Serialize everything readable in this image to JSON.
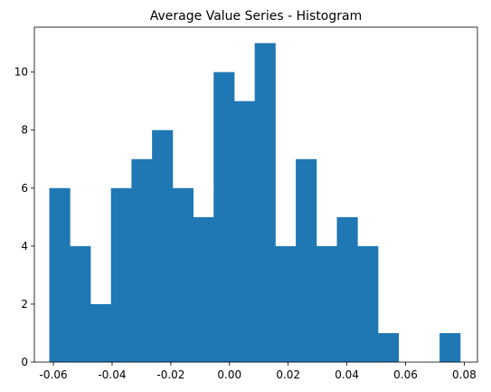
{
  "chart_data": {
    "type": "histogram",
    "title": "Average Value Series - Histogram",
    "xlabel": "",
    "ylabel": "",
    "xlim": [
      -0.0665,
      0.0845
    ],
    "ylim": [
      0,
      11.55
    ],
    "x_ticks": [
      "-0.06",
      "-0.04",
      "-0.02",
      "0.00",
      "0.02",
      "0.04",
      "0.06",
      "0.08"
    ],
    "x_tick_values": [
      -0.06,
      -0.04,
      -0.02,
      0.0,
      0.02,
      0.04,
      0.06,
      0.08
    ],
    "y_ticks": [
      "0",
      "2",
      "4",
      "6",
      "8",
      "10"
    ],
    "y_tick_values": [
      0,
      2,
      4,
      6,
      8,
      10
    ],
    "bin_edges": [
      -0.0614,
      -0.0544,
      -0.0474,
      -0.0404,
      -0.0334,
      -0.0264,
      -0.0194,
      -0.0124,
      -0.0054,
      0.0016,
      0.0086,
      0.0156,
      0.0226,
      0.0296,
      0.0366,
      0.0436,
      0.0506,
      0.0576,
      0.0646,
      0.0716,
      0.0786
    ],
    "counts": [
      6,
      4,
      2,
      6,
      7,
      8,
      6,
      5,
      10,
      9,
      11,
      4,
      7,
      4,
      5,
      4,
      1,
      0,
      0,
      1
    ],
    "bar_color": "#1f77b4",
    "grid": false,
    "legend": "none"
  }
}
